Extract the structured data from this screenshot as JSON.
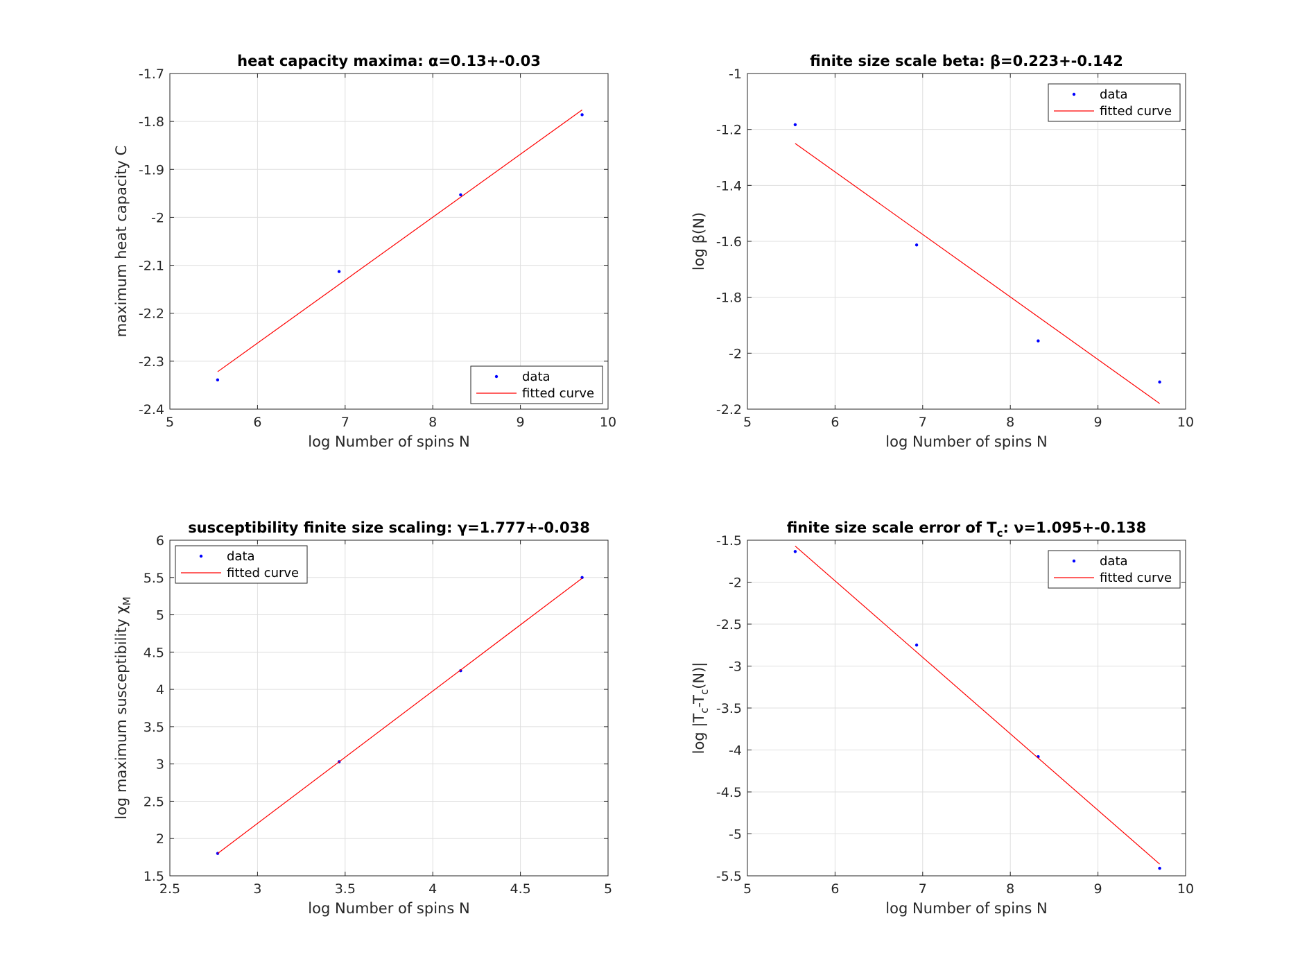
{
  "chart_data": [
    {
      "type": "scatter",
      "title": "heat capacity maxima: α=0.13+-0.03",
      "xlabel": "log Number of spins N",
      "ylabel": "maximum heat capacity C",
      "xlim": [
        5,
        10
      ],
      "ylim": [
        -2.4,
        -1.7
      ],
      "xticks": [
        5,
        6,
        7,
        8,
        9,
        10
      ],
      "yticks": [
        -2.4,
        -2.3,
        -2.2,
        -2.1,
        -2,
        -1.9,
        -1.8,
        -1.7
      ],
      "grid": true,
      "legend_position": "bottom-right",
      "series": [
        {
          "name": "data",
          "kind": "points",
          "color": "#0000ff",
          "x": [
            5.545,
            6.931,
            8.318,
            9.704
          ],
          "y": [
            -2.339,
            -2.113,
            -1.953,
            -1.786
          ]
        },
        {
          "name": "fitted curve",
          "kind": "line",
          "color": "#ff0000",
          "x": [
            5.545,
            9.704
          ],
          "y": [
            -2.322,
            -1.776
          ]
        }
      ]
    },
    {
      "type": "scatter",
      "title": "finite size scale beta: β=0.223+-0.142",
      "xlabel": "log Number of spins N",
      "ylabel": "log β(N)",
      "xlim": [
        5,
        10
      ],
      "ylim": [
        -2.2,
        -1
      ],
      "xticks": [
        5,
        6,
        7,
        8,
        9,
        10
      ],
      "yticks": [
        -2.2,
        -2,
        -1.8,
        -1.6,
        -1.4,
        -1.2,
        -1
      ],
      "grid": true,
      "legend_position": "top-right",
      "series": [
        {
          "name": "data",
          "kind": "points",
          "color": "#0000ff",
          "x": [
            5.545,
            6.931,
            8.318,
            9.704
          ],
          "y": [
            -1.183,
            -1.613,
            -1.956,
            -2.103
          ]
        },
        {
          "name": "fitted curve",
          "kind": "line",
          "color": "#ff0000",
          "x": [
            5.545,
            9.704
          ],
          "y": [
            -1.25,
            -2.18
          ]
        }
      ]
    },
    {
      "type": "scatter",
      "title": "susceptibility finite size scaling: γ=1.777+-0.038",
      "xlabel": "log Number of spins N",
      "ylabel": "log maximum susceptibility χ",
      "ylabel_sub": "M",
      "xlim": [
        2.5,
        5
      ],
      "ylim": [
        1.5,
        6
      ],
      "xticks": [
        2.5,
        3,
        3.5,
        4,
        4.5,
        5
      ],
      "yticks": [
        1.5,
        2,
        2.5,
        3,
        3.5,
        4,
        4.5,
        5,
        5.5,
        6
      ],
      "grid": true,
      "legend_position": "top-left",
      "series": [
        {
          "name": "data",
          "kind": "points",
          "color": "#0000ff",
          "x": [
            2.773,
            3.466,
            4.159,
            4.852
          ],
          "y": [
            1.8,
            3.03,
            4.25,
            5.5
          ]
        },
        {
          "name": "fitted curve",
          "kind": "line",
          "color": "#ff0000",
          "x": [
            2.773,
            4.852
          ],
          "y": [
            1.8,
            5.49
          ]
        }
      ]
    },
    {
      "type": "scatter",
      "title": "finite size scale error of T",
      "title_sub": "c",
      "title_tail": ": ν=1.095+-0.138",
      "xlabel": "log Number of spins N",
      "ylabel": "log |T",
      "ylabel_sub1": "c",
      "ylabel_mid": "-T",
      "ylabel_sub2": "c",
      "ylabel_tail": "(N)|",
      "xlim": [
        5,
        10
      ],
      "ylim": [
        -5.5,
        -1.5
      ],
      "xticks": [
        5,
        6,
        7,
        8,
        9,
        10
      ],
      "yticks": [
        -5.5,
        -5,
        -4.5,
        -4,
        -3.5,
        -3,
        -2.5,
        -2,
        -1.5
      ],
      "grid": true,
      "legend_position": "top-right",
      "series": [
        {
          "name": "data",
          "kind": "points",
          "color": "#0000ff",
          "x": [
            5.545,
            6.931,
            8.318,
            9.704
          ],
          "y": [
            -1.635,
            -2.75,
            -4.08,
            -5.41
          ]
        },
        {
          "name": "fitted curve",
          "kind": "line",
          "color": "#ff0000",
          "x": [
            5.545,
            9.704
          ],
          "y": [
            -1.57,
            -5.36
          ]
        }
      ]
    }
  ]
}
